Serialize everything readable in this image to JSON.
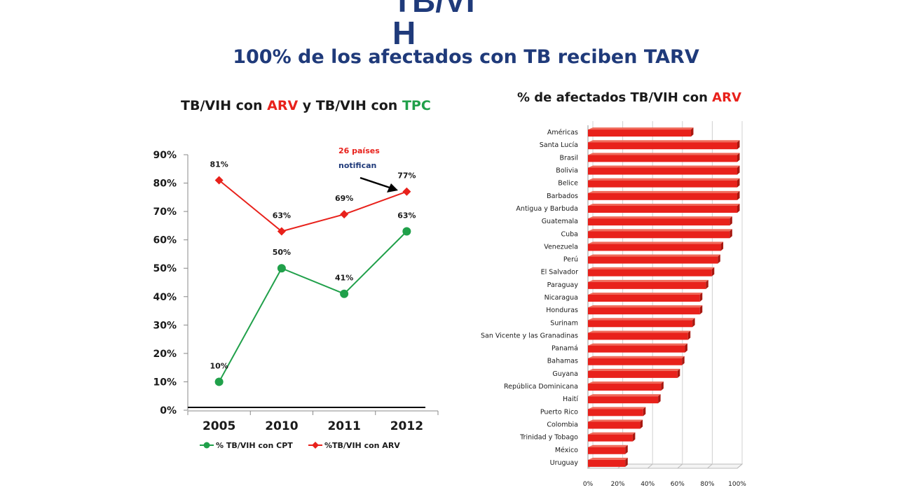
{
  "slide": {
    "header": "TB/VI\nH",
    "title": "100% de los afectados con TB reciben TARV"
  },
  "left_chart": {
    "title_pre": "TB/VIH con ",
    "title_arv": "ARV",
    "title_mid": " y TB/VIH con ",
    "title_tpc": "TPC",
    "annotation_line1": "26 países",
    "annotation_line2": "notifican"
  },
  "right_chart": {
    "title_pre": "% de afectados TB/VIH con ",
    "title_arv": "ARV"
  },
  "colors": {
    "red": "#e8211b",
    "green": "#20a04a",
    "title_blue": "#1f3a7a"
  },
  "chart_data": [
    {
      "type": "line",
      "title": "TB/VIH con ARV y TB/VIH con TPC",
      "categories": [
        "2005",
        "2010",
        "2011",
        "2012"
      ],
      "y_ticks": [
        "0%",
        "10%",
        "20%",
        "30%",
        "40%",
        "50%",
        "60%",
        "70%",
        "80%",
        "90%"
      ],
      "ylim": [
        0,
        90
      ],
      "grid": false,
      "legend_position": "bottom",
      "series": [
        {
          "name": "% TB/VIH con CPT",
          "values": [
            10,
            50,
            41,
            63
          ],
          "labels": [
            "10%",
            "50%",
            "41%",
            "63%"
          ],
          "color": "#20a04a",
          "marker": "circle"
        },
        {
          "name": "%TB/VIH con ARV",
          "values": [
            81,
            63,
            69,
            77
          ],
          "labels": [
            "81%",
            "63%",
            "69%",
            "77%"
          ],
          "color": "#e8211b",
          "marker": "diamond"
        }
      ],
      "annotation": "26 países notifican"
    },
    {
      "type": "bar",
      "orientation": "horizontal",
      "title": "% de afectados TB/VIH con ARV",
      "categories": [
        "Américas",
        "Santa Lucía",
        "Brasil",
        "Bolivia",
        "Belice",
        "Barbados",
        "Antigua y Barbuda",
        "Guatemala",
        "Cuba",
        "Venezuela",
        "Perú",
        "El Salvador",
        "Paraguay",
        "Nicaragua",
        "Honduras",
        "Surinam",
        "San Vicente y las Granadinas",
        "Panamá",
        "Bahamas",
        "Guyana",
        "República Dominicana",
        "Haití",
        "Puerto Rico",
        "Colombia",
        "Trinidad y Tobago",
        "México",
        "Uruguay"
      ],
      "values": [
        69,
        100,
        100,
        100,
        100,
        100,
        100,
        95,
        95,
        89,
        87,
        83,
        79,
        75,
        75,
        70,
        67,
        65,
        63,
        60,
        49,
        47,
        37,
        35,
        30,
        25,
        25
      ],
      "x_ticks": [
        "0%",
        "20%",
        "40%",
        "60%",
        "80%",
        "100%"
      ],
      "xlim": [
        0,
        100
      ],
      "color": "#e8211b"
    }
  ]
}
